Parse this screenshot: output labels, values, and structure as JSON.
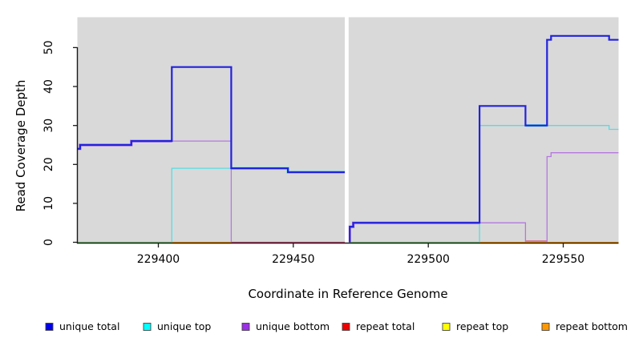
{
  "figure": {
    "background": "#ffffff",
    "plot_background": "#d9d9d9",
    "axis_color": "#1a1a1a"
  },
  "chart_data": {
    "type": "line",
    "subtype": "step-coverage",
    "title": "",
    "xlabel": "Coordinate in Reference Genome",
    "ylabel": "Read Coverage Depth",
    "xlim": [
      229370,
      229570.5
    ],
    "ylim": [
      0,
      57.8
    ],
    "grid": "off",
    "legend_position": "bottom",
    "x_ticks": [
      {
        "v": 229400,
        "label": "229400"
      },
      {
        "v": 229450,
        "label": "229450"
      },
      {
        "v": 229500,
        "label": "229500"
      },
      {
        "v": 229550,
        "label": "229550"
      }
    ],
    "y_ticks": [
      {
        "v": 0,
        "label": "0"
      },
      {
        "v": 10,
        "label": "10"
      },
      {
        "v": 20,
        "label": "20"
      },
      {
        "v": 30,
        "label": "30"
      },
      {
        "v": 40,
        "label": "40"
      },
      {
        "v": 50,
        "label": "50"
      }
    ],
    "gap": {
      "x1": 229469.1,
      "x2": 229470.5,
      "color": "#ffffff",
      "note": "white no-data band"
    },
    "series": [
      {
        "name": "unique total",
        "color": "#0000ee",
        "runs": [
          [
            229370,
            229371,
            24
          ],
          [
            229371,
            229390,
            25
          ],
          [
            229390,
            229405,
            26
          ],
          [
            229405,
            229427,
            45
          ],
          [
            229427,
            229448,
            19
          ],
          [
            229448,
            229469,
            18
          ],
          [
            229471,
            229472,
            4
          ],
          [
            229472,
            229519,
            5
          ],
          [
            229519,
            229536,
            35
          ],
          [
            229536,
            229544,
            30
          ],
          [
            229544,
            229546,
            52
          ],
          [
            229546,
            229567,
            53
          ],
          [
            229567,
            229570,
            52
          ]
        ]
      },
      {
        "name": "unique top",
        "color": "#00ffff",
        "runs": [
          [
            229370,
            229405,
            0
          ],
          [
            229405,
            229427,
            19
          ],
          [
            229427,
            229448,
            19
          ],
          [
            229448,
            229469,
            18
          ],
          [
            229471,
            229519,
            0
          ],
          [
            229519,
            229567,
            30
          ],
          [
            229567,
            229570,
            29
          ]
        ]
      },
      {
        "name": "unique bottom",
        "color": "#9b30e8",
        "runs": [
          [
            229370,
            229371,
            24
          ],
          [
            229371,
            229390,
            25
          ],
          [
            229390,
            229405,
            26
          ],
          [
            229405,
            229427,
            26
          ],
          [
            229427,
            229469,
            0
          ],
          [
            229471,
            229472,
            4
          ],
          [
            229472,
            229536,
            5
          ],
          [
            229536,
            229544,
            0
          ],
          [
            229544,
            229546,
            22
          ],
          [
            229546,
            229570,
            23
          ]
        ]
      },
      {
        "name": "repeat total",
        "color": "#ee0000",
        "runs": [
          [
            229370,
            229570,
            0
          ]
        ]
      },
      {
        "name": "repeat top",
        "color": "#ffff00",
        "runs": [
          [
            229370,
            229570,
            0
          ]
        ]
      },
      {
        "name": "repeat bottom",
        "color": "#ff9800",
        "runs": [
          [
            229370,
            229570,
            0
          ]
        ]
      }
    ],
    "render_paths": [
      {
        "name": "halo-unique-bottom-left",
        "color": "#b478de",
        "width": 3.2,
        "pts": [
          [
            229370,
            24
          ],
          [
            229371,
            24
          ],
          [
            229371,
            25
          ],
          [
            229390,
            25
          ],
          [
            229390,
            26
          ],
          [
            229405,
            26
          ]
        ]
      },
      {
        "name": "halo-unique-top-left",
        "color": "#55dde3",
        "width": 3.2,
        "pts": [
          [
            229427,
            19
          ],
          [
            229448,
            19
          ],
          [
            229448,
            18
          ],
          [
            229469.4,
            18
          ]
        ]
      },
      {
        "name": "halo-unique-bottom-right",
        "color": "#b478de",
        "width": 3.2,
        "pts": [
          [
            229470.9,
            0
          ],
          [
            229470.9,
            4
          ],
          [
            229472.2,
            4
          ],
          [
            229472.2,
            5
          ],
          [
            229519,
            5
          ]
        ]
      },
      {
        "name": "halo-unique-top-right",
        "color": "#55dde3",
        "width": 3.2,
        "pts": [
          [
            229536,
            30
          ],
          [
            229544,
            30
          ]
        ]
      },
      {
        "name": "baseline-blend-green-left",
        "color": "#7cc67c",
        "width": 1.3,
        "pts": [
          [
            229370,
            0
          ],
          [
            229405,
            0
          ]
        ]
      },
      {
        "name": "baseline-orange-left",
        "color": "#ff9800",
        "width": 1.3,
        "pts": [
          [
            229405,
            0
          ],
          [
            229427,
            0
          ]
        ]
      },
      {
        "name": "baseline-blend-pink-left",
        "color": "#cf4a78",
        "width": 1.3,
        "pts": [
          [
            229427,
            0
          ],
          [
            229469.4,
            0
          ]
        ]
      },
      {
        "name": "baseline-blend-green-right",
        "color": "#7cc67c",
        "width": 1.3,
        "pts": [
          [
            229470.9,
            0
          ],
          [
            229519,
            0
          ]
        ]
      },
      {
        "name": "baseline-orange-right",
        "color": "#ff9800",
        "width": 1.3,
        "pts": [
          [
            229519,
            0
          ],
          [
            229570.5,
            0
          ]
        ]
      },
      {
        "name": "baseline-blend-pink-right",
        "color": "#cf4a78",
        "width": 1.3,
        "pts": [
          [
            229536,
            0.3
          ],
          [
            229544,
            0.3
          ]
        ]
      },
      {
        "name": "unique-top-left-visible",
        "color": "#55dde3",
        "width": 1.3,
        "pts": [
          [
            229405,
            0
          ],
          [
            229405,
            19
          ],
          [
            229427,
            19
          ]
        ]
      },
      {
        "name": "unique-top-right-visible",
        "color": "#55dde3",
        "width": 1.3,
        "pts": [
          [
            229519,
            0
          ],
          [
            229519,
            30
          ],
          [
            229567,
            30
          ],
          [
            229567,
            29
          ],
          [
            229570.5,
            29
          ]
        ]
      },
      {
        "name": "unique-bottom-left-visible",
        "color": "#b478de",
        "width": 1.3,
        "pts": [
          [
            229405,
            26
          ],
          [
            229427,
            26
          ],
          [
            229427,
            0
          ]
        ]
      },
      {
        "name": "unique-bottom-mid-visible",
        "color": "#b478de",
        "width": 1.3,
        "pts": [
          [
            229519,
            5
          ],
          [
            229536,
            5
          ],
          [
            229536,
            0
          ]
        ]
      },
      {
        "name": "unique-bottom-right-visible",
        "color": "#b478de",
        "width": 1.3,
        "pts": [
          [
            229544,
            0
          ],
          [
            229544,
            22
          ],
          [
            229545.5,
            22
          ],
          [
            229545.5,
            23
          ],
          [
            229570.5,
            23
          ]
        ]
      },
      {
        "name": "unique-total-left",
        "color": "#2222dd",
        "width": 2.2,
        "pts": [
          [
            229370,
            24
          ],
          [
            229371,
            24
          ],
          [
            229371,
            25
          ],
          [
            229390,
            25
          ],
          [
            229390,
            26
          ],
          [
            229405,
            26
          ],
          [
            229405,
            45
          ],
          [
            229427,
            45
          ],
          [
            229427,
            19
          ],
          [
            229448,
            19
          ],
          [
            229448,
            18
          ],
          [
            229469.4,
            18
          ]
        ]
      },
      {
        "name": "unique-total-right",
        "color": "#2222dd",
        "width": 2.2,
        "pts": [
          [
            229470.9,
            0
          ],
          [
            229470.9,
            4
          ],
          [
            229472.2,
            4
          ],
          [
            229472.2,
            5
          ],
          [
            229519,
            5
          ],
          [
            229519,
            35
          ],
          [
            229536,
            35
          ],
          [
            229536,
            30
          ],
          [
            229544,
            30
          ],
          [
            229544,
            52
          ],
          [
            229545.5,
            52
          ],
          [
            229545.5,
            53
          ],
          [
            229567,
            53
          ],
          [
            229567,
            52
          ],
          [
            229570.5,
            52
          ]
        ]
      }
    ],
    "legend": [
      {
        "label": "unique total",
        "color": "#0000ee"
      },
      {
        "label": "unique top",
        "color": "#00ffff"
      },
      {
        "label": "unique bottom",
        "color": "#9b30e8"
      },
      {
        "label": "repeat total",
        "color": "#ee0000"
      },
      {
        "label": "repeat top",
        "color": "#ffff00"
      },
      {
        "label": "repeat bottom",
        "color": "#ff9800"
      }
    ]
  }
}
